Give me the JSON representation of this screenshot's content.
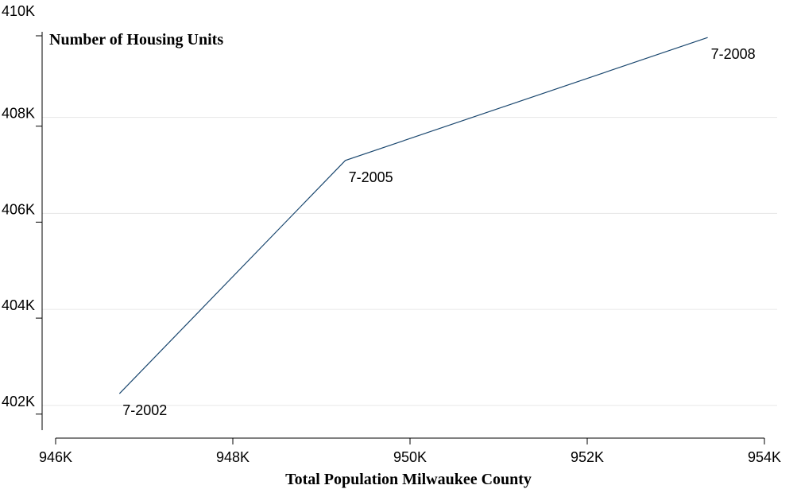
{
  "chart_data": {
    "type": "line",
    "title": "",
    "ylabel": "Number of Housing Units",
    "xlabel": "Total Population Milwaukee County",
    "xlim": [
      946000,
      954000
    ],
    "ylim": [
      401500,
      409800
    ],
    "x_ticks": [
      946000,
      948000,
      950000,
      952000,
      954000
    ],
    "x_tick_labels": [
      "946K",
      "948K",
      "950K",
      "952K",
      "954K"
    ],
    "y_ticks": [
      402000,
      404000,
      406000,
      408000,
      410000
    ],
    "y_tick_labels": [
      "402K",
      "404K",
      "406K",
      "408K",
      "410K"
    ],
    "grid": "horizontal",
    "legend": "none",
    "colors": {
      "line": "#1a476f",
      "grid": "#e6e6e6"
    },
    "series": [
      {
        "points": [
          {
            "x": 946720,
            "y": 402260,
            "label": "7-2002"
          },
          {
            "x": 949270,
            "y": 407120,
            "label": "7-2005"
          },
          {
            "x": 953360,
            "y": 409680,
            "label": "7-2008"
          }
        ]
      }
    ]
  }
}
